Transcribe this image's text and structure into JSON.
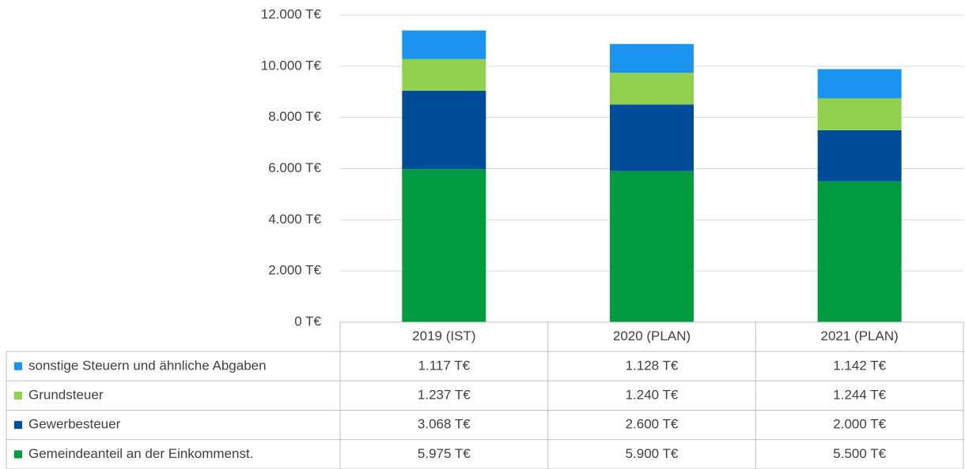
{
  "chart_data": {
    "type": "stacked_bar",
    "categories": [
      "2019 (IST)",
      "2020 (PLAN)",
      "2021 (PLAN)"
    ],
    "series": [
      {
        "name": "Gemeindeanteil an der Einkommenst.",
        "color": "#009a3f",
        "values": [
          5975,
          5900,
          5500
        ],
        "value_labels": [
          "5.975 T€",
          "5.900 T€",
          "5.500 T€"
        ]
      },
      {
        "name": "Gewerbesteuer",
        "color": "#004c99",
        "values": [
          3068,
          2600,
          2000
        ],
        "value_labels": [
          "3.068 T€",
          "2.600 T€",
          "2.000 T€"
        ]
      },
      {
        "name": "Grundsteuer",
        "color": "#92d050",
        "values": [
          1237,
          1240,
          1244
        ],
        "value_labels": [
          "1.237 T€",
          "1.240 T€",
          "1.244 T€"
        ]
      },
      {
        "name": "sonstige Steuern und ähnliche Abgaben",
        "color": "#1b94f0",
        "values": [
          1117,
          1128,
          1142
        ],
        "value_labels": [
          "1.117 T€",
          "1.128 T€",
          "1.142 T€"
        ]
      }
    ],
    "ylim": [
      0,
      12000
    ],
    "yticks": [
      {
        "value": 0,
        "label": "0 T€"
      },
      {
        "value": 2000,
        "label": "2.000 T€"
      },
      {
        "value": 4000,
        "label": "4.000 T€"
      },
      {
        "value": 6000,
        "label": "6.000 T€"
      },
      {
        "value": 8000,
        "label": "8.000 T€"
      },
      {
        "value": 10000,
        "label": "10.000 T€"
      },
      {
        "value": 12000,
        "label": "12.000 T€"
      }
    ],
    "grid": true
  }
}
